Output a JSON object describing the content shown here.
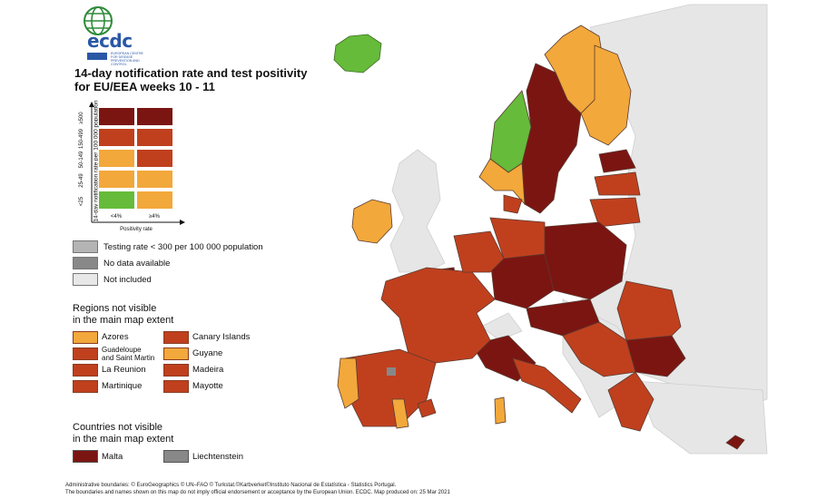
{
  "logo": {
    "name": "ecdc",
    "subtitle": "EUROPEAN CENTRE FOR DISEASE PREVENTION AND CONTROL"
  },
  "title": {
    "line1": "14-day notification rate and test positivity",
    "line2": "for EU/EEA weeks 10 - 11"
  },
  "matrix": {
    "y_axis_label": "14-day notification rate per 100 000 population",
    "x_axis_label": "Positivity rate",
    "rows": [
      "≥500",
      "150-499",
      "50-149",
      "25-49",
      "<25"
    ],
    "cols": [
      "<4%",
      "≥4%"
    ],
    "colors": [
      [
        "#7b1512",
        "#7b1512"
      ],
      [
        "#c0401e",
        "#c0401e"
      ],
      [
        "#f2a83a",
        "#c0401e"
      ],
      [
        "#f2a83a",
        "#f2a83a"
      ],
      [
        "#66bb3a",
        "#f2a83a"
      ]
    ]
  },
  "special_legend": [
    {
      "label": "Testing rate < 300 per 100 000 population",
      "color": "#b4b4b4"
    },
    {
      "label": "No data available",
      "color": "#888888"
    },
    {
      "label": "Not included",
      "color": "#e8e8e8"
    }
  ],
  "regions": {
    "heading1": "Regions not visible",
    "heading2": "in the main map extent",
    "items": [
      {
        "label": "Azores",
        "color": "#f2a83a"
      },
      {
        "label": "Canary Islands",
        "color": "#c0401e"
      },
      {
        "label": "Guadeloupe and Saint Martin",
        "line1": "Guadeloupe",
        "line2": "and Saint Martin",
        "color": "#c0401e"
      },
      {
        "label": "Guyane",
        "color": "#f2a83a"
      },
      {
        "label": "La Reunion",
        "color": "#c0401e"
      },
      {
        "label": "Madeira",
        "color": "#c0401e"
      },
      {
        "label": "Martinique",
        "color": "#c0401e"
      },
      {
        "label": "Mayotte",
        "color": "#c0401e"
      }
    ]
  },
  "countries": {
    "heading1": "Countries not visible",
    "heading2": "in the main map extent",
    "items": [
      {
        "label": "Malta",
        "color": "#7b1512"
      },
      {
        "label": "Liechtenstein",
        "color": "#888888"
      }
    ]
  },
  "footer": {
    "line1": "Administrative boundaries: © EuroGeographics © UN–FAO © Turkstat.©Karbverket©Instituto Nacional de Estatística - Statistics Portugal.",
    "line2": "The boundaries and names shown on this map do not imply official endorsement or acceptance by the European Union. ECDC. Map produced on: 25 Mar 2021"
  },
  "map_colors": {
    "sea": "#ffffff",
    "not_included": "#e6e6e6",
    "dark": "#7b1512",
    "red": "#c0401e",
    "orange": "#f2a83a",
    "green": "#66bb3a",
    "grey": "#888888",
    "border": "#5a3a30"
  }
}
